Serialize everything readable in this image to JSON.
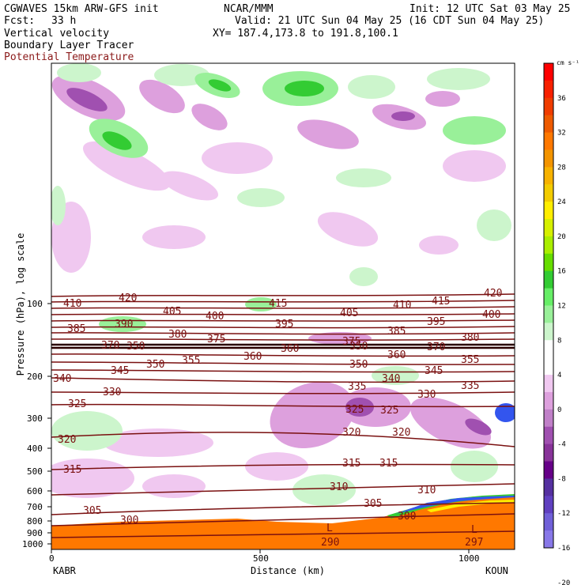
{
  "header": {
    "model": "CGWAVES 15km ARW-GFS init",
    "org": "NCAR/MMM",
    "init": "Init: 12 UTC Sat 03 May 25",
    "fcst_label": "Fcst:",
    "fcst_value": "33 h",
    "valid": "Valid: 21 UTC Sun 04 May 25 (16 CDT Sun 04 May 25)",
    "xy": "XY= 187.4,173.8 to 191.8,100.1"
  },
  "legend_lines": [
    "Vertical velocity",
    "Boundary Layer Tracer",
    "Potential Temperature"
  ],
  "chart_data": {
    "type": "heatmap",
    "xlabel": "Distance (km)",
    "ylabel": "Pressure (hPa), log scale",
    "x_ticks": [
      "0",
      "500",
      "1000"
    ],
    "x_range_km": [
      0,
      1110
    ],
    "y_ticks": [
      "100",
      "200",
      "300",
      "400",
      "500",
      "600",
      "700",
      "800",
      "900",
      "1000"
    ],
    "y_log_scale": true,
    "x_endpoints": [
      "KABR",
      "KOUN"
    ],
    "colorbar": {
      "unit": "cm s⁻¹",
      "labels": [
        "36",
        "32",
        "28",
        "24",
        "20",
        "16",
        "12",
        "8",
        "4",
        "0",
        "-4",
        "-8",
        "-12",
        "-16",
        "-20"
      ],
      "colors": [
        "#ff0000",
        "#f82000",
        "#f03c00",
        "#ee5a00",
        "#ff7800",
        "#f39400",
        "#f7b200",
        "#f3cc00",
        "#ffee00",
        "#d6f000",
        "#aaee00",
        "#66dd00",
        "#33cc33",
        "#66ee66",
        "#99f099",
        "#ccf5cc",
        "#ffffff",
        "#ffffff",
        "#f0c8f0",
        "#dda0dd",
        "#c080c8",
        "#a050b0",
        "#883399",
        "#660088",
        "#5530a0",
        "#6040c0",
        "#7060d8",
        "#8878e8"
      ]
    },
    "isotherm_labels": [
      {
        "text": "420"
      },
      {
        "text": "410"
      },
      {
        "text": "415"
      },
      {
        "text": "420"
      },
      {
        "text": "410"
      },
      {
        "text": "415"
      },
      {
        "text": "405"
      },
      {
        "text": "400"
      },
      {
        "text": "405"
      },
      {
        "text": "400"
      },
      {
        "text": "385"
      },
      {
        "text": "390"
      },
      {
        "text": "380"
      },
      {
        "text": "395"
      },
      {
        "text": "385"
      },
      {
        "text": "395"
      },
      {
        "text": "375"
      },
      {
        "text": "375"
      },
      {
        "text": "380"
      },
      {
        "text": "370"
      },
      {
        "text": "360"
      },
      {
        "text": "350"
      },
      {
        "text": "350"
      },
      {
        "text": "360"
      },
      {
        "text": "370"
      },
      {
        "text": "345"
      },
      {
        "text": "350"
      },
      {
        "text": "355"
      },
      {
        "text": "360"
      },
      {
        "text": "350"
      },
      {
        "text": "345"
      },
      {
        "text": "355"
      },
      {
        "text": "340"
      },
      {
        "text": "340"
      },
      {
        "text": "335"
      },
      {
        "text": "335"
      },
      {
        "text": "330"
      },
      {
        "text": "330"
      },
      {
        "text": "325"
      },
      {
        "text": "325"
      },
      {
        "text": "325"
      },
      {
        "text": "320"
      },
      {
        "text": "320"
      },
      {
        "text": "320"
      },
      {
        "text": "315"
      },
      {
        "text": "315"
      },
      {
        "text": "315"
      },
      {
        "text": "310"
      },
      {
        "text": "310"
      },
      {
        "text": "305"
      },
      {
        "text": "305"
      },
      {
        "text": "300"
      },
      {
        "text": "300"
      },
      {
        "text": "290"
      },
      {
        "text": "297"
      }
    ],
    "lows": [
      {
        "text": "L"
      },
      {
        "text": "L"
      }
    ]
  }
}
